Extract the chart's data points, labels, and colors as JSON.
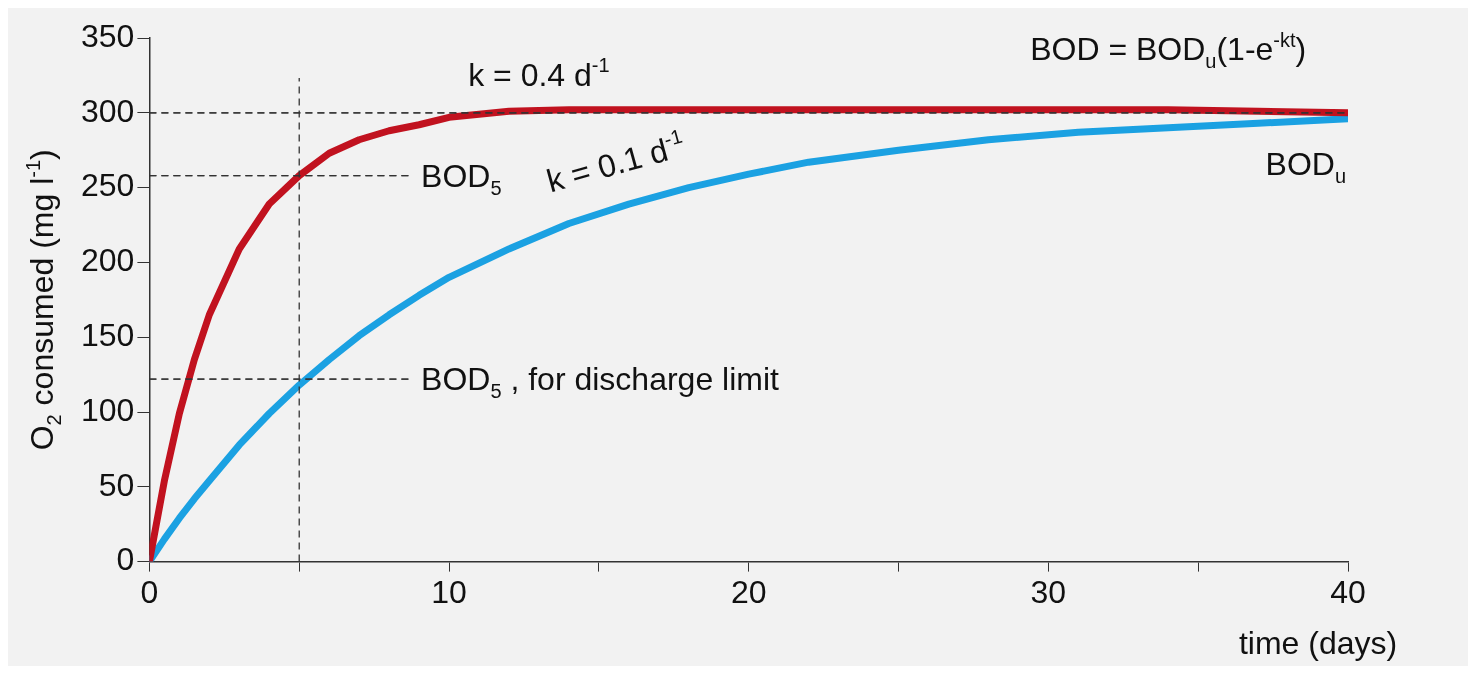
{
  "chart_data": {
    "type": "line",
    "xlabel": "time (days)",
    "ylabel": "O$_{2}$ consumed (mg l$^{-1}$)",
    "x": [
      0,
      0.5,
      1,
      1.5,
      2,
      3,
      4,
      5,
      6,
      7,
      8,
      9,
      10,
      12,
      14,
      16,
      18,
      20,
      22,
      25,
      28,
      31,
      34,
      37,
      40
    ],
    "series": [
      {
        "name": "k = 0.4 d$^{-1}$",
        "color": "#c1121f",
        "values": [
          0,
          54,
          99,
          135,
          165,
          209,
          239,
          258,
          273,
          282,
          288,
          292,
          297,
          301,
          302,
          302,
          302,
          302,
          302,
          302,
          302,
          302,
          302,
          301,
          300
        ]
      },
      {
        "name": "k = 0.1 d$^{-1}$",
        "color": "#1ba1e2",
        "values": [
          0,
          15,
          29,
          42,
          54,
          78,
          99,
          118,
          135,
          151,
          165,
          178,
          190,
          209,
          226,
          239,
          250,
          259,
          267,
          275,
          282,
          287,
          290,
          293,
          296
        ]
      }
    ],
    "xlim": [
      0,
      40
    ],
    "xticks": [
      0,
      {
        "value": 5,
        "label": null
      },
      10,
      {
        "value": 15,
        "label": null
      },
      20,
      {
        "value": 25,
        "label": null
      },
      30,
      {
        "value": 35,
        "label": null
      },
      40
    ],
    "ylim": [
      0,
      350
    ],
    "yticks": [
      0,
      50,
      100,
      150,
      200,
      250,
      300,
      350
    ],
    "grid": false,
    "marker": "none",
    "line_style": "solid",
    "ref_lines": [
      {
        "axis": "y",
        "value": 300,
        "line_style": "dashed",
        "color": "#333333"
      },
      {
        "axis": "y",
        "value": 258,
        "label": "BOD$_{5}$",
        "line_style": "dashed",
        "color": "#333333"
      },
      {
        "axis": "y",
        "value": 122,
        "label": "BOD$_{5}$ , for discharge limit",
        "line_style": "dashed",
        "color": "#333333"
      },
      {
        "axis": "x",
        "value": 5,
        "line_style": "dashed",
        "color": "#333333"
      }
    ],
    "annotations": [
      "BOD = BOD$_{u}$(1-e$^{-kt}$)",
      {
        "text": "BOD$_{u}$",
        "x": 40,
        "y": 300
      }
    ]
  }
}
